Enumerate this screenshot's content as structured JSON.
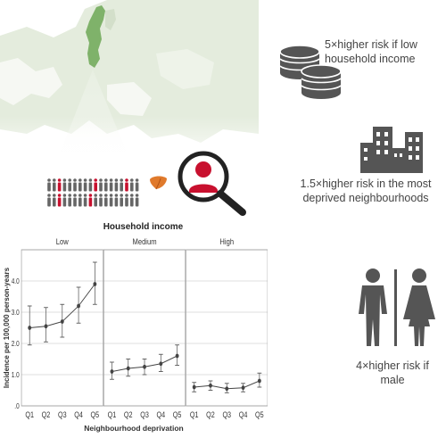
{
  "facts": {
    "income": "5×higher risk if low household income",
    "neighbourhood": "1.5×higher risk in the most deprived neighbourhoods",
    "sex": "4×higher risk if male"
  },
  "icons": [
    "europe-map-icon",
    "population-icon",
    "liver-icon",
    "magnifier-person-icon",
    "coins-icon",
    "buildings-icon",
    "male-female-icon"
  ],
  "colors": {
    "accent": "#c8102e",
    "sweden": "#7fb26a",
    "map": "#dfe9d7",
    "icon": "#555555",
    "line": "#444444"
  },
  "chart_data": {
    "type": "line",
    "title": "Household income",
    "xlabel": "Neighbourhood deprivation",
    "ylabel": "Incidence per 100,000 person-years",
    "ylim": [
      0,
      5
    ],
    "y_ticks": [
      ".0",
      "1.0",
      "2.0",
      "3.0",
      "4.0"
    ],
    "y_tick_values": [
      0,
      1,
      2,
      3,
      4
    ],
    "categories": [
      "Q1",
      "Q2",
      "Q3",
      "Q4",
      "Q5"
    ],
    "grid": true,
    "panels": [
      {
        "name": "Low",
        "values": [
          2.5,
          2.55,
          2.7,
          3.2,
          3.9
        ],
        "lower": [
          1.95,
          2.05,
          2.2,
          2.65,
          3.25
        ],
        "upper": [
          3.2,
          3.15,
          3.25,
          3.8,
          4.6
        ]
      },
      {
        "name": "Medium",
        "values": [
          1.1,
          1.2,
          1.25,
          1.35,
          1.6
        ],
        "lower": [
          0.85,
          0.95,
          1.0,
          1.1,
          1.3
        ],
        "upper": [
          1.4,
          1.5,
          1.5,
          1.65,
          1.95
        ]
      },
      {
        "name": "High",
        "values": [
          0.6,
          0.65,
          0.55,
          0.58,
          0.8
        ],
        "lower": [
          0.45,
          0.5,
          0.42,
          0.45,
          0.6
        ],
        "upper": [
          0.75,
          0.8,
          0.72,
          0.72,
          1.05
        ]
      }
    ]
  }
}
